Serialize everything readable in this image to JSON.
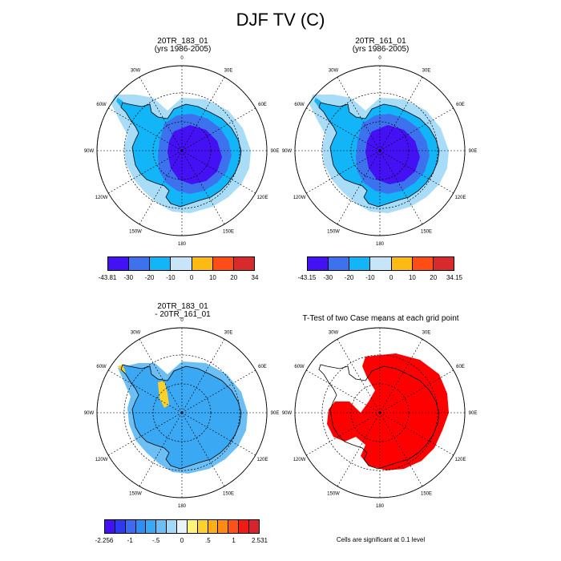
{
  "title": "DJF TV (C)",
  "panels": [
    {
      "title": [
        "20TR_183_01",
        "(yrs 1986-2005)"
      ],
      "map": "mean"
    },
    {
      "title": [
        "20TR_161_01",
        "(yrs 1986-2005)"
      ],
      "map": "mean"
    },
    {
      "title": [
        "20TR_183_01",
        "- 20TR_161_01"
      ],
      "map": "diff"
    },
    {
      "title": [
        "T-Test of two Case means at each grid point"
      ],
      "map": "ttest"
    }
  ],
  "map_labels": {
    "top": "0",
    "bottom": "180",
    "left": "90W",
    "right": "90E",
    "upper_left": "30W",
    "upper_right": "30E",
    "left_upper": "60W",
    "right_upper": "60E",
    "left_lower": "120W",
    "right_lower": "120E",
    "lower_left": "150W",
    "lower_right": "150E"
  },
  "colorbar_top_left": {
    "colors": [
      "#4410f4",
      "#3d72ee",
      "#12b5f7",
      "#c6e6f7",
      "#fdba12",
      "#ff4d15",
      "#d82a2a"
    ],
    "ticks": [
      "-43.81",
      "-30",
      "-20",
      "-10",
      "0",
      "10",
      "20",
      "34"
    ]
  },
  "colorbar_top_right": {
    "colors": [
      "#4410f4",
      "#3d72ee",
      "#12b5f7",
      "#c6e6f7",
      "#fdba12",
      "#ff4d15",
      "#d82a2a"
    ],
    "ticks": [
      "-43.15",
      "-30",
      "-20",
      "-10",
      "0",
      "10",
      "20",
      "34.15"
    ]
  },
  "colorbar_bottom": {
    "colors": [
      "#4410f4",
      "#2d3af2",
      "#3a6cf1",
      "#2d8ff4",
      "#3aa8f2",
      "#6cbff4",
      "#a5d7f6",
      "#e8f4fb",
      "#fff37a",
      "#fdd12a",
      "#fdae14",
      "#fd8a14",
      "#fd5214",
      "#ef1c13",
      "#d8232b"
    ],
    "ticks": [
      "-2.256",
      "-1",
      "-.5",
      "0",
      ".5",
      "1",
      "2.531"
    ]
  },
  "significance_note": "Cells are significant at 0.1 level",
  "colors": {
    "ice_inner": "#4410f4",
    "ice_mid": "#3d72ee",
    "ice_outer": "#12b5f7",
    "ice_edge": "#a9dcf7",
    "diff_fill": "#3aa8f2",
    "diff_light": "#6cbff4",
    "diff_yellow": "#fdd12a",
    "ttest_red": "#ff0000"
  }
}
